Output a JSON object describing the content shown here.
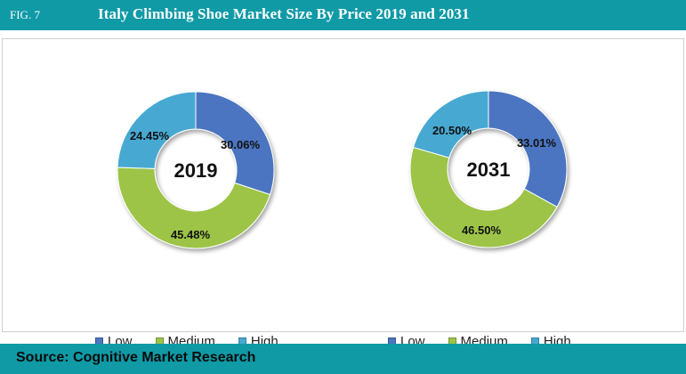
{
  "header": {
    "fig_label": "FIG. 7",
    "title": "Italy Climbing Shoe Market Size By Price 2019 and 2031"
  },
  "footer": {
    "source": "Source: Cognitive Market Research"
  },
  "colors": {
    "header_bg": "#0f9aa6",
    "Low": "#4c74c0",
    "Medium": "#9dc447",
    "High": "#46a9d2"
  },
  "chart_data": [
    {
      "type": "pie",
      "center_label": "2019",
      "categories": [
        "Low",
        "Medium",
        "High"
      ],
      "values": [
        30.06,
        45.48,
        24.45
      ],
      "labels": [
        "30.06%",
        "45.48%",
        "24.45%"
      ]
    },
    {
      "type": "pie",
      "center_label": "2031",
      "categories": [
        "Low",
        "Medium",
        "High"
      ],
      "values": [
        33.01,
        46.5,
        20.5
      ],
      "labels": [
        "33.01%",
        "46.50%",
        "20.50%"
      ]
    }
  ],
  "legend": [
    "Low",
    "Medium",
    "High"
  ]
}
